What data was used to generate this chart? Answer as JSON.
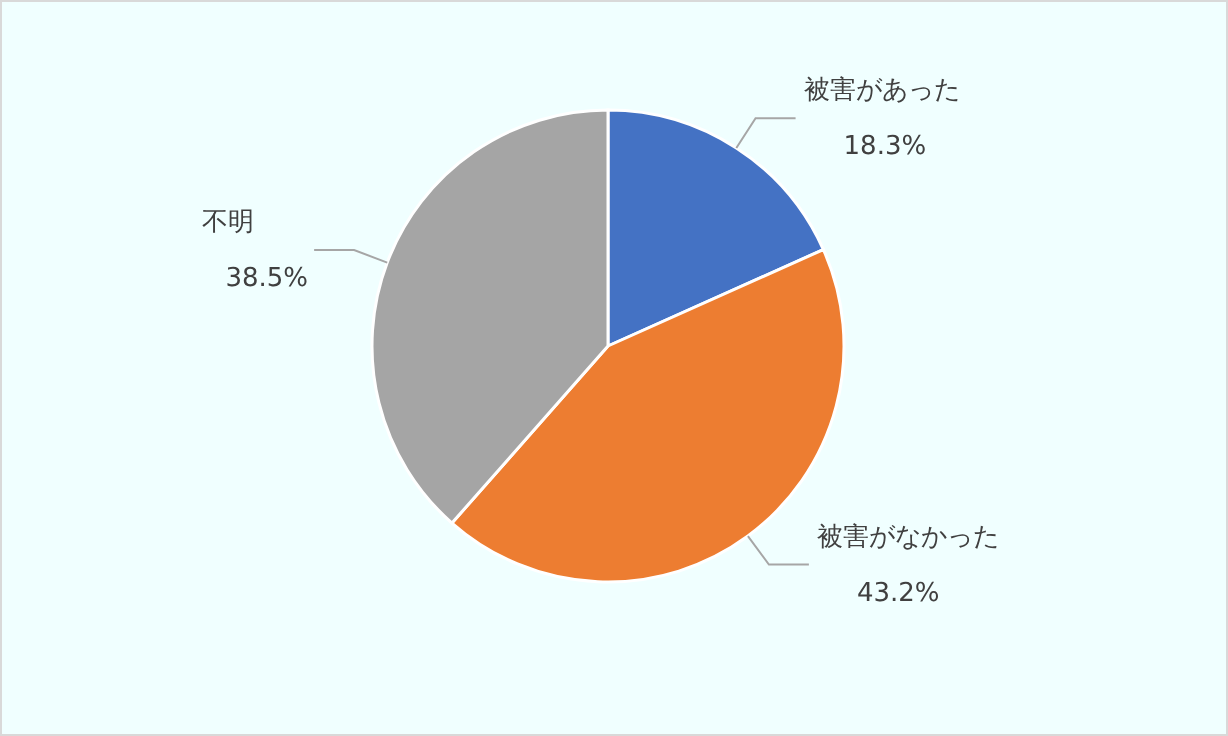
{
  "chart_data": {
    "type": "pie",
    "categories": [
      "被害があった",
      "被害がなかった",
      "不明"
    ],
    "values": [
      18.3,
      43.2,
      38.5
    ],
    "colors": [
      "#4472c4",
      "#ed7d31",
      "#a5a5a5"
    ],
    "value_labels": [
      "18.3%",
      "43.2%",
      "38.5%"
    ]
  }
}
